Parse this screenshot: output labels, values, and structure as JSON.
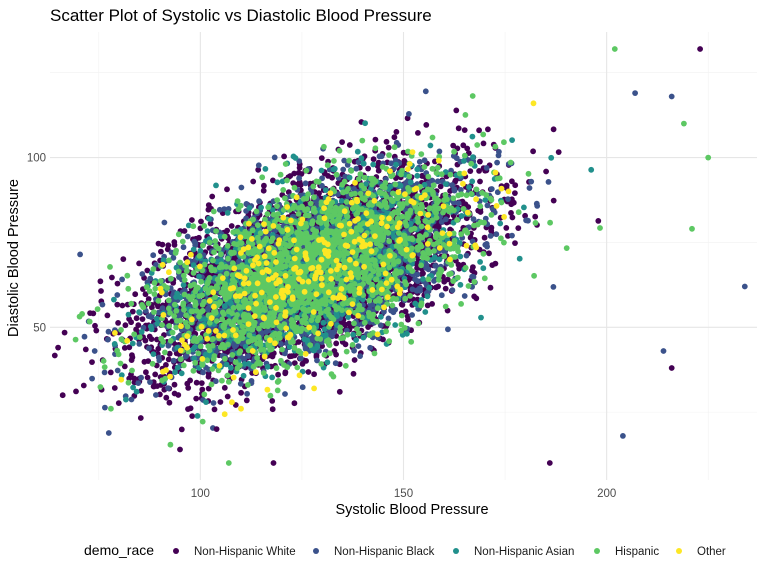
{
  "chart_data": {
    "type": "scatter",
    "title": "Scatter Plot of Systolic vs Diastolic Blood Pressure",
    "xlabel": "Systolic Blood Pressure",
    "ylabel": "Diastolic Blood Pressure",
    "xlim": [
      63,
      237
    ],
    "ylim": [
      5,
      137
    ],
    "x_ticks": [
      100,
      150,
      200
    ],
    "y_ticks": [
      50,
      100
    ],
    "grid": true,
    "legend_title": "demo_race",
    "legend_position": "bottom",
    "series": [
      {
        "name": "Non-Hispanic White",
        "color": "#440154"
      },
      {
        "name": "Non-Hispanic Black",
        "color": "#3b528b"
      },
      {
        "name": "Non-Hispanic Asian",
        "color": "#21908c"
      },
      {
        "name": "Hispanic",
        "color": "#5dc863"
      },
      {
        "name": "Other",
        "color": "#fde725"
      }
    ],
    "summary": {
      "core_x_range": [
        85,
        185
      ],
      "core_y_range": [
        35,
        110
      ],
      "approx_points_per_series": [
        4200,
        1900,
        900,
        1800,
        280
      ]
    },
    "notable_points": [
      {
        "series": "Non-Hispanic White",
        "x": 65,
        "y": 44
      },
      {
        "series": "Non-Hispanic Black",
        "x": 74,
        "y": 43
      },
      {
        "series": "Hispanic",
        "x": 78,
        "y": 26
      },
      {
        "series": "Non-Hispanic White",
        "x": 95,
        "y": 14
      },
      {
        "series": "Non-Hispanic White",
        "x": 104,
        "y": 20
      },
      {
        "series": "Hispanic",
        "x": 107,
        "y": 10
      },
      {
        "series": "Non-Hispanic White",
        "x": 118,
        "y": 10
      },
      {
        "series": "Non-Hispanic White",
        "x": 186,
        "y": 10
      },
      {
        "series": "Non-Hispanic Black",
        "x": 204,
        "y": 18
      },
      {
        "series": "Hispanic",
        "x": 202,
        "y": 132
      },
      {
        "series": "Non-Hispanic White",
        "x": 223,
        "y": 132
      },
      {
        "series": "Hispanic",
        "x": 225,
        "y": 100
      },
      {
        "series": "Non-Hispanic Black",
        "x": 234,
        "y": 62
      },
      {
        "series": "Non-Hispanic Black",
        "x": 207,
        "y": 119
      },
      {
        "series": "Non-Hispanic Black",
        "x": 216,
        "y": 118
      },
      {
        "series": "Hispanic",
        "x": 219,
        "y": 110
      },
      {
        "series": "Hispanic",
        "x": 221,
        "y": 79
      },
      {
        "series": "Non-Hispanic Black",
        "x": 214,
        "y": 43
      },
      {
        "series": "Non-Hispanic White",
        "x": 216,
        "y": 38
      },
      {
        "series": "Other",
        "x": 182,
        "y": 116
      },
      {
        "series": "Other",
        "x": 82,
        "y": 46
      },
      {
        "series": "Other",
        "x": 110,
        "y": 26
      },
      {
        "series": "Other",
        "x": 128,
        "y": 32
      }
    ]
  }
}
